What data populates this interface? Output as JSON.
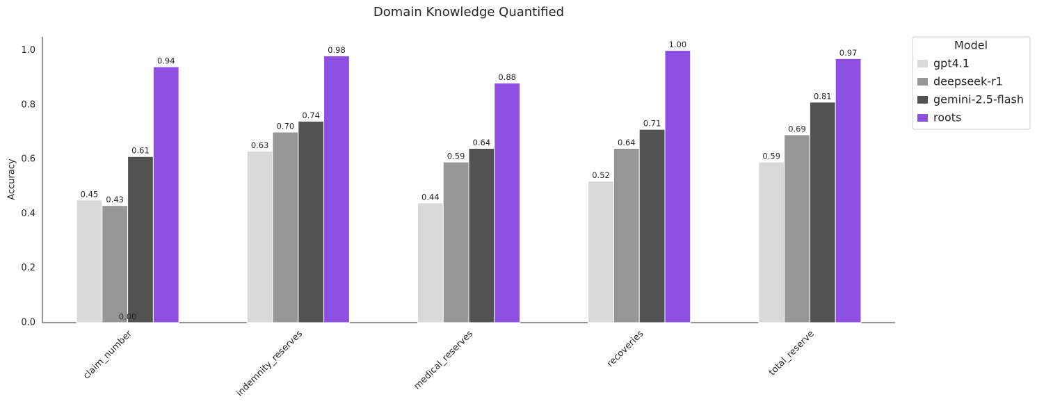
{
  "chart_data": {
    "type": "bar",
    "title": "Domain Knowledge Quantified",
    "y_label": "Accuracy",
    "categories": [
      "claim_number",
      "indemnity_reserves",
      "medical_reserves",
      "recoveries",
      "total_reserve"
    ],
    "series": [
      {
        "name": "gpt4.1",
        "color": "#d9d9d9",
        "values": [
          0.45,
          0.63,
          0.44,
          0.52,
          0.59
        ],
        "value_labels": [
          "0.45",
          "0.63",
          "0.44",
          "0.52",
          "0.59"
        ]
      },
      {
        "name": "deepseek-r1",
        "color": "#969696",
        "values": [
          0.43,
          0.7,
          0.59,
          0.64,
          0.69
        ],
        "value_labels": [
          "0.43",
          "0.70",
          "0.59",
          "0.64",
          "0.69"
        ]
      },
      {
        "name": "gemini-2.5-flash",
        "color": "#525252",
        "values": [
          0.61,
          0.74,
          0.64,
          0.71,
          0.81
        ],
        "value_labels": [
          "0.61",
          "0.74",
          "0.64",
          "0.71",
          "0.81"
        ]
      },
      {
        "name": "roots",
        "color": "#8e4fe3",
        "values": [
          0.94,
          0.98,
          0.88,
          1.0,
          0.97
        ],
        "value_labels": [
          "0.94",
          "0.98",
          "0.88",
          "1.00",
          "0.97"
        ]
      }
    ],
    "annotations": [
      "0.00"
    ],
    "legend_title": "Model",
    "legend_position": "outside-upper-right",
    "ylim": [
      0,
      1.05
    ],
    "yticks": [
      {
        "value": 0,
        "label": "0.0"
      },
      {
        "value": 0.2,
        "label": "0.2"
      },
      {
        "value": 0.4,
        "label": "0.4"
      },
      {
        "value": 0.6,
        "label": "0.6"
      },
      {
        "value": 0.8,
        "label": "0.8"
      },
      {
        "value": 1.0,
        "label": "1.0"
      }
    ],
    "grid": false
  }
}
